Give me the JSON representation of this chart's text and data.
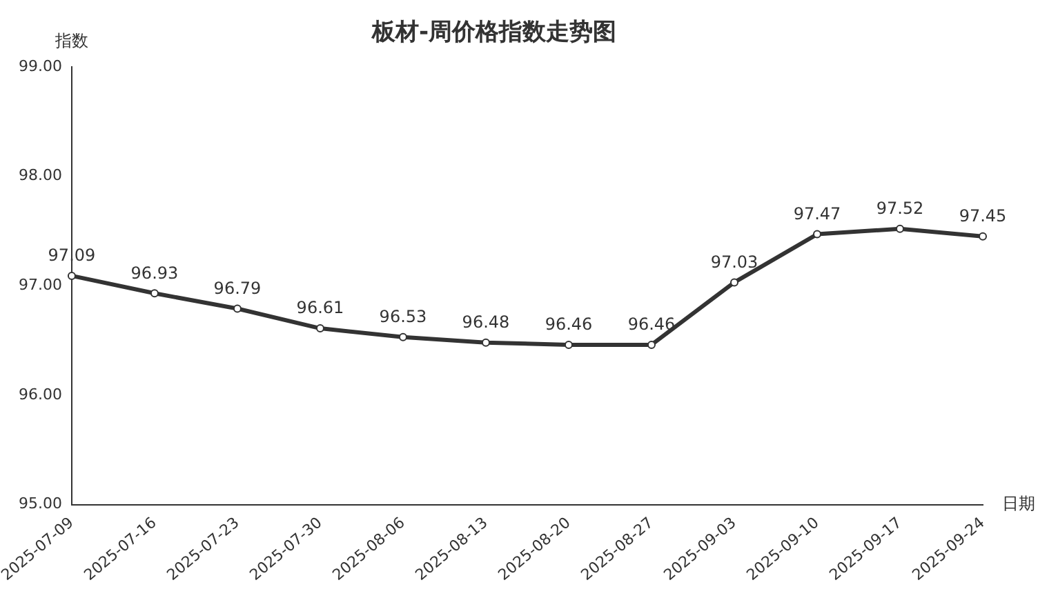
{
  "chart_data": {
    "type": "line",
    "title": "板材-周价格指数走势图",
    "xlabel": "日期",
    "ylabel": "指数",
    "categories": [
      "2025-07-09",
      "2025-07-16",
      "2025-07-23",
      "2025-07-30",
      "2025-08-06",
      "2025-08-13",
      "2025-08-20",
      "2025-08-27",
      "2025-09-03",
      "2025-09-10",
      "2025-09-17",
      "2025-09-24"
    ],
    "series": [
      {
        "color": "#333333",
        "values": [
          97.09,
          96.93,
          96.79,
          96.61,
          96.53,
          96.48,
          96.46,
          96.46,
          97.03,
          97.47,
          97.52,
          97.45
        ]
      }
    ],
    "ylim": [
      95,
      99
    ],
    "yticks": [
      {
        "value": 95,
        "label": "95.00"
      },
      {
        "value": 96,
        "label": "96.00"
      },
      {
        "value": 97,
        "label": "97.00"
      },
      {
        "value": 98,
        "label": "98.00"
      },
      {
        "value": 99,
        "label": "99.00"
      }
    ],
    "grid": false,
    "legend": false,
    "marker": "circle",
    "line_style": "solid",
    "data_labels": true
  }
}
